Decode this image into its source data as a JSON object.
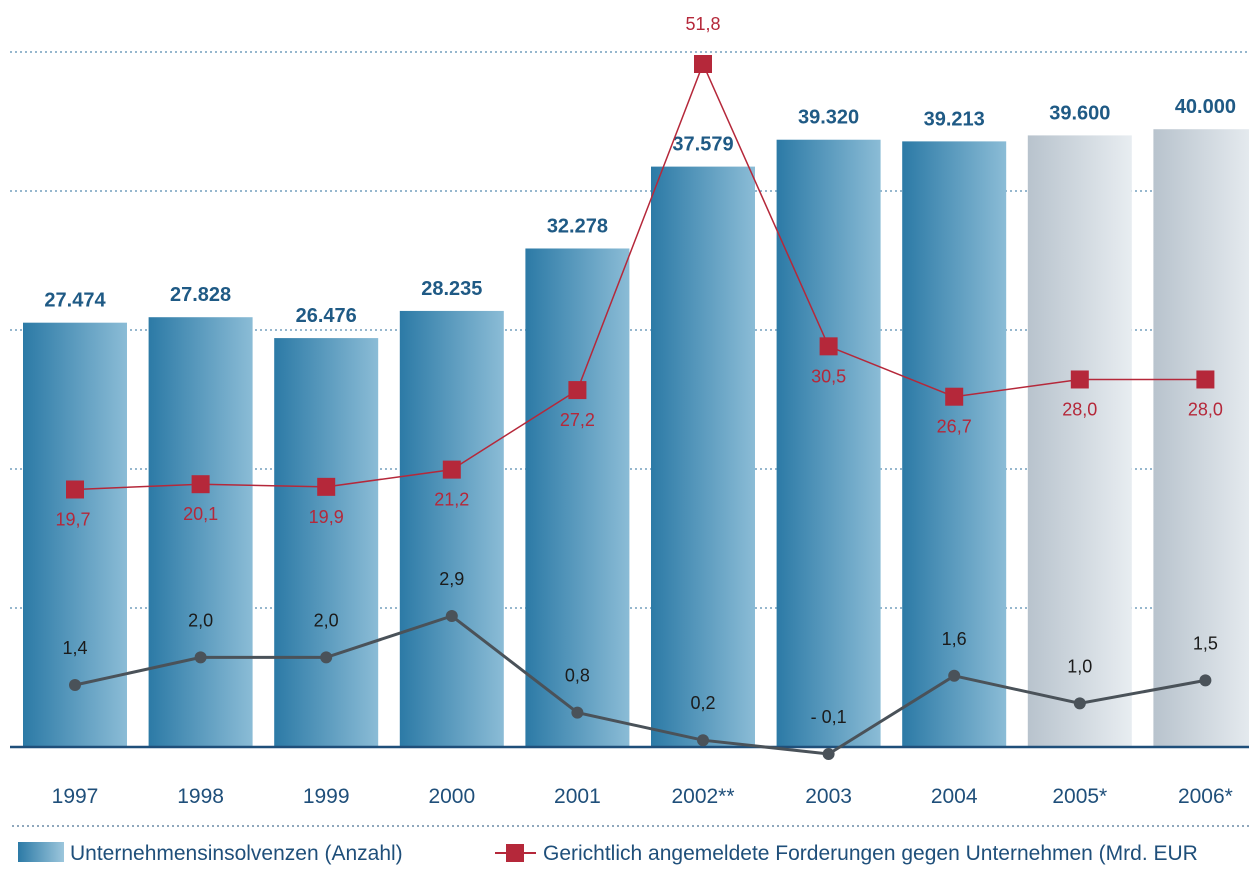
{
  "chart_data": {
    "type": "bar",
    "categories": [
      "1997",
      "1998",
      "1999",
      "2000",
      "2001",
      "2002**",
      "2003",
      "2004",
      "2005*",
      "2006*"
    ],
    "series": [
      {
        "name": "Unternehmensinsolvenzen (Anzahl)",
        "type": "bar",
        "values": [
          27474,
          27828,
          26476,
          28235,
          32278,
          37579,
          39320,
          39213,
          39600,
          40000
        ],
        "labels": [
          "27.474",
          "27.828",
          "26.476",
          "28.235",
          "32.278",
          "37.579",
          "39.320",
          "39.213",
          "39.600",
          "40.000"
        ],
        "forecast": [
          false,
          false,
          false,
          false,
          false,
          false,
          false,
          false,
          true,
          true
        ],
        "color": "#2d7ea8",
        "forecast_color": "#c3ccd5",
        "label_color": "#1f5a85"
      },
      {
        "name": "Gerichtlich angemeldete Forderungen gegen Unternehmen (Mrd. EUR",
        "type": "line",
        "values": [
          19.7,
          20.1,
          19.9,
          21.2,
          27.2,
          51.8,
          30.5,
          26.7,
          28.0,
          28.0
        ],
        "labels": [
          "19,7",
          "20,1",
          "19,9",
          "21,2",
          "27,2",
          "51,8",
          "30,5",
          "26,7",
          "28,0",
          "28,0"
        ],
        "color": "#b5283a"
      },
      {
        "type": "line",
        "values": [
          1.4,
          2.0,
          2.0,
          2.9,
          0.8,
          0.2,
          -0.1,
          1.6,
          1.0,
          1.5
        ],
        "labels": [
          "1,4",
          "2,0",
          "2,0",
          "2,9",
          "0,8",
          "0,2",
          "- 0,1",
          "1,6",
          "1,0",
          "1,5"
        ],
        "color": "#4a5259"
      }
    ],
    "bar_ylim": [
      0,
      45000
    ],
    "grid": "dotted horizontal",
    "legend_placement": "bottom"
  },
  "legend": {
    "bars_label": "Unternehmensinsolvenzen (Anzahl)",
    "red_label": "Gerichtlich angemeldete Forderungen gegen Unternehmen (Mrd. EUR"
  },
  "colors": {
    "grid": "#2c6f9c",
    "axis": "#1f4f7a",
    "category_text": "#1f4f7a"
  }
}
